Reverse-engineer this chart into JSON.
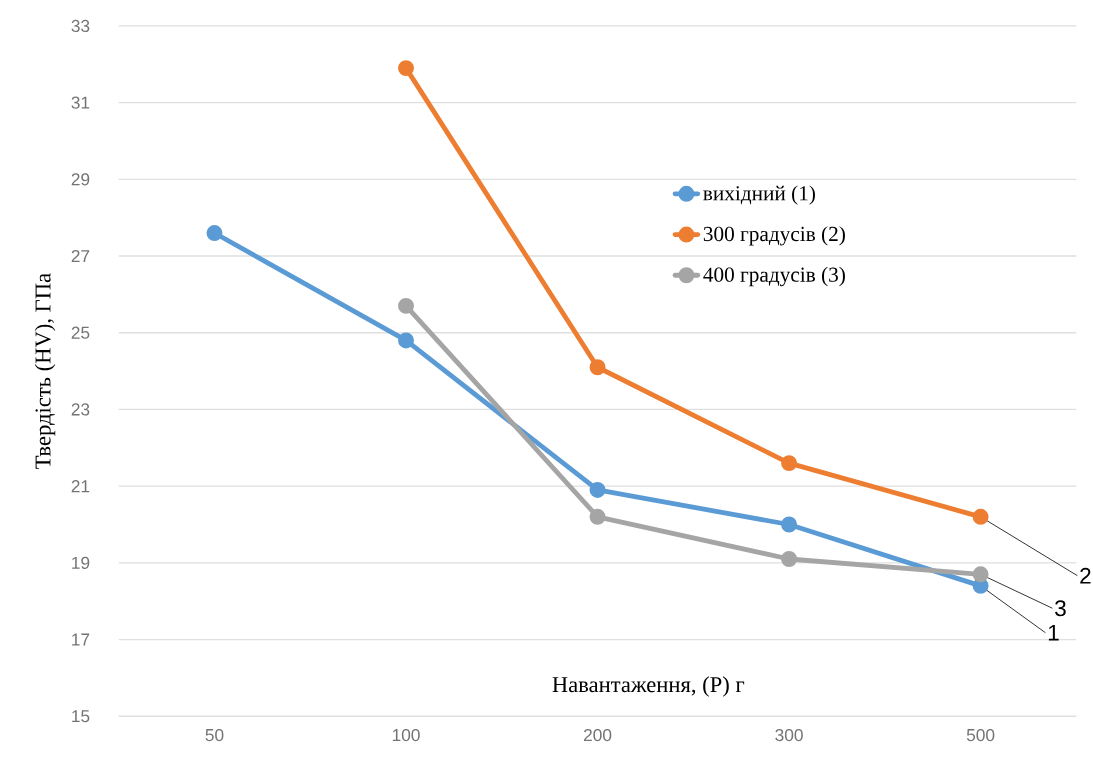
{
  "chart_data": {
    "type": "line",
    "xlabel": "Навантаження, (P) г",
    "ylabel": "Твердість (HV), ГПа",
    "categories": [
      "50",
      "100",
      "200",
      "300",
      "500"
    ],
    "series": [
      {
        "name": "вихідний (1)",
        "color": "#5b9bd5",
        "values": [
          27.6,
          24.8,
          20.9,
          20.0,
          18.4
        ]
      },
      {
        "name": "300 градусів (2)",
        "color": "#ed7d31",
        "values": [
          null,
          31.9,
          24.1,
          21.6,
          20.2
        ]
      },
      {
        "name": "400 градусів (3)",
        "color": "#a5a5a5",
        "values": [
          null,
          25.7,
          20.2,
          19.1,
          18.7
        ]
      }
    ],
    "ylim": [
      15,
      33
    ],
    "yticks": [
      15,
      17,
      19,
      21,
      23,
      25,
      27,
      29,
      31,
      33
    ],
    "grid": "y",
    "legend": "right",
    "marker": "circle",
    "line_style": "solid",
    "annotations": [
      {
        "text": "2",
        "x": "500",
        "y": 20.2
      },
      {
        "text": "3",
        "x": "500",
        "y": 18.7
      },
      {
        "text": "1",
        "x": "500",
        "y": 18.4
      }
    ]
  }
}
